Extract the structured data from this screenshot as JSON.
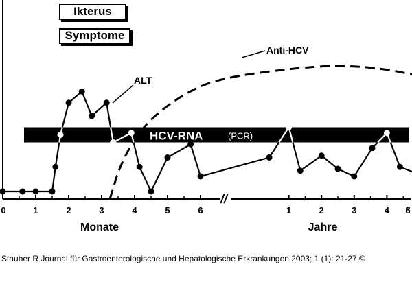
{
  "chart_data": {
    "type": "line",
    "title": "",
    "legend_boxes": [
      "Ikterus",
      "Symptome"
    ],
    "x_axis": {
      "segments": [
        {
          "label": "Monate",
          "ticks": [
            "0",
            "1",
            "2",
            "3",
            "4",
            "5",
            "6"
          ]
        },
        {
          "label": "Jahre",
          "ticks": [
            "1",
            "2",
            "3",
            "4",
            "5",
            "6"
          ]
        }
      ],
      "break_marker": "//"
    },
    "ylabel": "",
    "series": [
      {
        "name": "ALT",
        "style": "solid-with-markers",
        "points": [
          {
            "seg": 0,
            "x": 0.0,
            "y": 4,
            "hollow": false
          },
          {
            "seg": 0,
            "x": 0.6,
            "y": 4,
            "hollow": false
          },
          {
            "seg": 0,
            "x": 1.0,
            "y": 4,
            "hollow": false
          },
          {
            "seg": 0,
            "x": 1.5,
            "y": 4,
            "hollow": false
          },
          {
            "seg": 0,
            "x": 1.6,
            "y": 17,
            "hollow": false
          },
          {
            "seg": 0,
            "x": 1.75,
            "y": 34,
            "hollow": true
          },
          {
            "seg": 0,
            "x": 2.0,
            "y": 51,
            "hollow": false
          },
          {
            "seg": 0,
            "x": 2.4,
            "y": 57,
            "hollow": false
          },
          {
            "seg": 0,
            "x": 2.7,
            "y": 44,
            "hollow": false
          },
          {
            "seg": 0,
            "x": 3.15,
            "y": 51,
            "hollow": false
          },
          {
            "seg": 0,
            "x": 3.35,
            "y": 30,
            "hollow": true
          },
          {
            "seg": 0,
            "x": 3.9,
            "y": 35,
            "hollow": true
          },
          {
            "seg": 0,
            "x": 4.15,
            "y": 17,
            "hollow": false
          },
          {
            "seg": 0,
            "x": 4.5,
            "y": 4,
            "hollow": false
          },
          {
            "seg": 0,
            "x": 5.0,
            "y": 22,
            "hollow": false
          },
          {
            "seg": 0,
            "x": 5.7,
            "y": 29,
            "hollow": false
          },
          {
            "seg": 0,
            "x": 6.0,
            "y": 12,
            "hollow": false
          },
          {
            "seg": 1,
            "x": 0.4,
            "y": 22,
            "hollow": false
          },
          {
            "seg": 1,
            "x": 1.0,
            "y": 38,
            "hollow": true
          },
          {
            "seg": 1,
            "x": 1.35,
            "y": 15,
            "hollow": false
          },
          {
            "seg": 1,
            "x": 2.0,
            "y": 23,
            "hollow": false
          },
          {
            "seg": 1,
            "x": 2.5,
            "y": 16,
            "hollow": false
          },
          {
            "seg": 1,
            "x": 3.0,
            "y": 12,
            "hollow": false
          },
          {
            "seg": 1,
            "x": 3.55,
            "y": 27,
            "hollow": false
          },
          {
            "seg": 1,
            "x": 4.0,
            "y": 35,
            "hollow": true
          },
          {
            "seg": 1,
            "x": 4.4,
            "y": 17,
            "hollow": false
          },
          {
            "seg": 1,
            "x": 5.0,
            "y": 13,
            "hollow": false
          },
          {
            "seg": 1,
            "x": 5.6,
            "y": 24,
            "hollow": false
          }
        ]
      },
      {
        "name": "Anti-HCV",
        "style": "dashed",
        "points": [
          {
            "seg": 0,
            "x": 3.25,
            "y": 0
          },
          {
            "seg": 0,
            "x": 3.6,
            "y": 20
          },
          {
            "seg": 0,
            "x": 4.3,
            "y": 40
          },
          {
            "seg": 0,
            "x": 5.5,
            "y": 56
          },
          {
            "seg": 0,
            "x": 6.6,
            "y": 64
          },
          {
            "seg": 1,
            "x": 1.0,
            "y": 69
          },
          {
            "seg": 1,
            "x": 2.5,
            "y": 71
          },
          {
            "seg": 1,
            "x": 4.0,
            "y": 69
          },
          {
            "seg": 1,
            "x": 5.5,
            "y": 63
          },
          {
            "seg": 1,
            "x": 6.0,
            "y": 60
          }
        ]
      },
      {
        "name": "HCV-RNA",
        "sub_label": "(PCR)",
        "style": "band",
        "level": 34
      }
    ],
    "grid": false,
    "legend": "inline-labels"
  },
  "citation": "Stauber R Journal für Gastroenterologische und Hepatologische Erkrankungen 2003; 1 (1): 21-27 ©"
}
